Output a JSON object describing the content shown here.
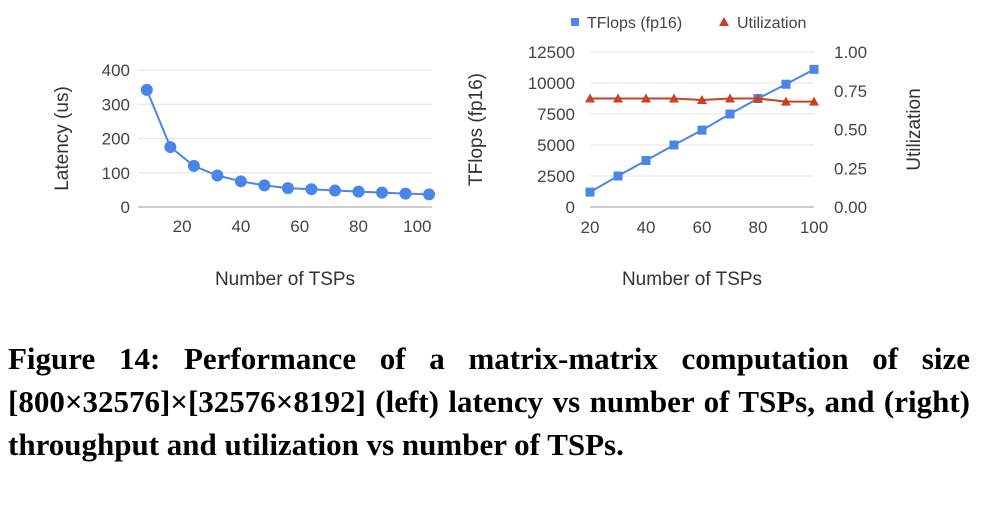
{
  "caption": "Figure 14: Performance of a matrix-matrix computation of size [800×32576]×[32576×8192] (left) latency vs number of TSPs, and (right) throughput and utilization vs number of TSPs.",
  "colors": {
    "series_primary": "#4a86e8",
    "series_secondary": "#cc4125",
    "grid": "#e3e3e3"
  },
  "chart_data": [
    {
      "type": "line",
      "title": "",
      "xlabel": "Number of TSPs",
      "ylabel": "Latency (us)",
      "xlim": [
        5,
        105
      ],
      "ylim": [
        0,
        400
      ],
      "xticks": [
        20,
        40,
        60,
        80,
        100
      ],
      "yticks": [
        0,
        100,
        200,
        300,
        400
      ],
      "grid": true,
      "series": [
        {
          "name": "",
          "marker": "circle",
          "x": [
            8,
            16,
            24,
            32,
            40,
            48,
            56,
            64,
            72,
            80,
            88,
            96,
            104
          ],
          "y": [
            342,
            175,
            120,
            92,
            75,
            63,
            55,
            52,
            48,
            45,
            42,
            39,
            37
          ]
        }
      ]
    },
    {
      "type": "line",
      "title": "",
      "xlabel": "Number of TSPs",
      "ylabel": "TFlops (fp16)",
      "y2label": "Utilization",
      "xlim": [
        20,
        100
      ],
      "ylim": [
        0,
        12500
      ],
      "y2lim": [
        0,
        1
      ],
      "xticks": [
        20,
        40,
        60,
        80,
        100
      ],
      "yticks": [
        0,
        2500,
        5000,
        7500,
        10000,
        12500
      ],
      "y2ticks": [
        "0.00",
        "0.25",
        "0.50",
        "0.75",
        "1.00"
      ],
      "grid": true,
      "legend": "top-center",
      "series": [
        {
          "name": "TFlops (fp16)",
          "marker": "square",
          "axis": "left",
          "x": [
            20,
            30,
            40,
            50,
            60,
            70,
            80,
            90,
            100
          ],
          "y": [
            1200,
            2500,
            3750,
            5000,
            6200,
            7500,
            8750,
            9900,
            11100
          ]
        },
        {
          "name": "Utilization",
          "marker": "triangle",
          "axis": "right",
          "x": [
            20,
            30,
            40,
            50,
            60,
            70,
            80,
            90,
            100
          ],
          "y": [
            0.7,
            0.7,
            0.7,
            0.7,
            0.69,
            0.7,
            0.7,
            0.68,
            0.68
          ]
        }
      ]
    }
  ]
}
